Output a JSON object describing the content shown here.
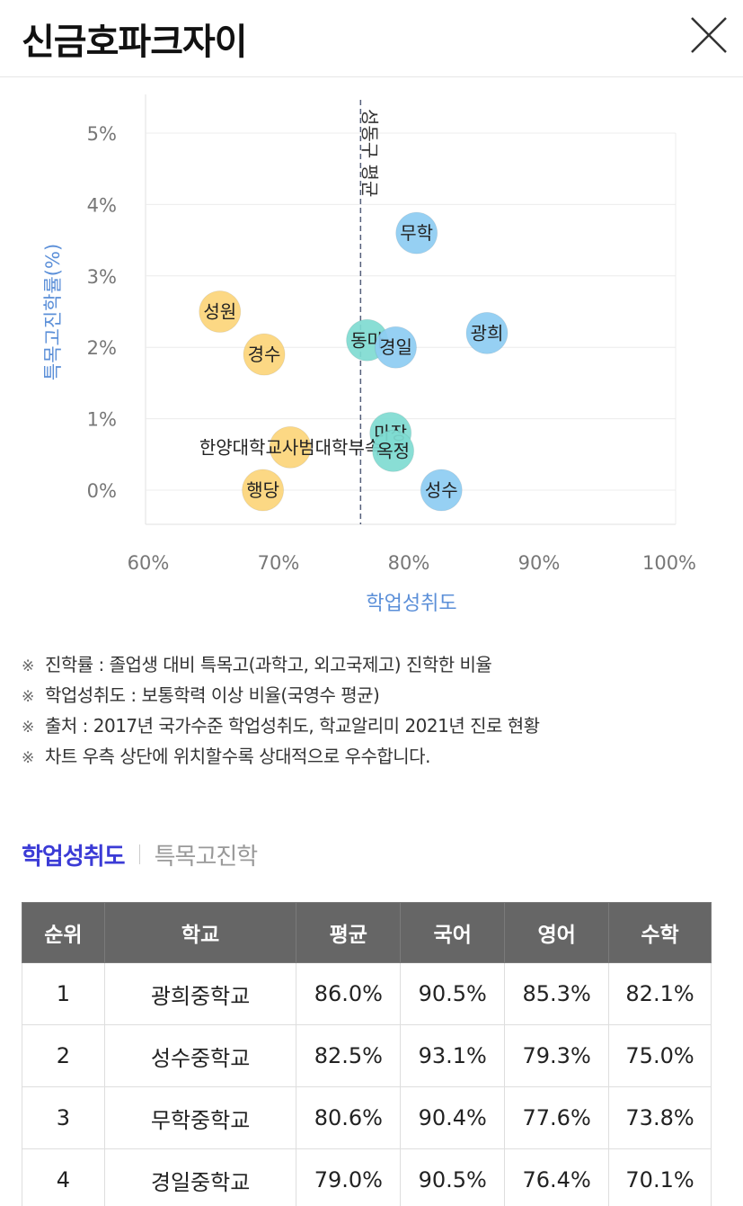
{
  "header": {
    "title": "신금호파크자이"
  },
  "chart_data": {
    "type": "scatter",
    "xlabel": "학업성취도",
    "ylabel": "특목고진학률(%)",
    "xlim": [
      60,
      100
    ],
    "ylim": [
      0,
      5
    ],
    "x_ticks": [
      "60%",
      "70%",
      "80%",
      "90%",
      "100%"
    ],
    "y_ticks": [
      "0%",
      "1%",
      "2%",
      "3%",
      "4%",
      "5%"
    ],
    "average_line": {
      "x": 76.3,
      "label": "성동구 평균"
    },
    "points": [
      {
        "name": "무학",
        "x": 80.6,
        "y": 3.6,
        "group": "blue"
      },
      {
        "name": "성원",
        "x": 65.5,
        "y": 2.5,
        "group": "yellow"
      },
      {
        "name": "광희",
        "x": 86.0,
        "y": 2.2,
        "group": "blue"
      },
      {
        "name": "동마",
        "x": 76.8,
        "y": 2.1,
        "group": "teal"
      },
      {
        "name": "경일",
        "x": 79.0,
        "y": 2.0,
        "group": "blue"
      },
      {
        "name": "경수",
        "x": 68.9,
        "y": 1.9,
        "group": "yellow"
      },
      {
        "name": "마장",
        "x": 78.6,
        "y": 0.8,
        "group": "teal"
      },
      {
        "name": "한양대학교사범대학부속",
        "x": 70.9,
        "y": 0.6,
        "group": "yellow"
      },
      {
        "name": "옥정",
        "x": 78.8,
        "y": 0.55,
        "group": "teal"
      },
      {
        "name": "행당",
        "x": 68.8,
        "y": 0.0,
        "group": "yellow"
      },
      {
        "name": "성수",
        "x": 82.5,
        "y": 0.0,
        "group": "blue"
      }
    ],
    "colors": {
      "blue": "#8ecdf3",
      "yellow": "#fcd57a",
      "teal": "#7fdcd2",
      "avg_line": "#555f7a",
      "axis_label": "#5b8fd8"
    }
  },
  "notes": [
    "진학률 : 졸업생 대비 특목고(과학고, 외고국제고) 진학한 비율",
    "학업성취도 : 보통학력 이상 비율(국영수 평균)",
    "출처 : 2017년 국가수준 학업성취도, 학교알리미 2021년 진로 현황",
    "차트 우측 상단에 위치할수록 상대적으로 우수합니다."
  ],
  "note_mark": "※",
  "tabs": [
    {
      "label": "학업성취도",
      "active": true
    },
    {
      "label": "특목고진학",
      "active": false
    }
  ],
  "table": {
    "headers": [
      "순위",
      "학교",
      "평균",
      "국어",
      "영어",
      "수학"
    ],
    "rows": [
      [
        "1",
        "광희중학교",
        "86.0%",
        "90.5%",
        "85.3%",
        "82.1%"
      ],
      [
        "2",
        "성수중학교",
        "82.5%",
        "93.1%",
        "79.3%",
        "75.0%"
      ],
      [
        "3",
        "무학중학교",
        "80.6%",
        "90.4%",
        "77.6%",
        "73.8%"
      ],
      [
        "4",
        "경일중학교",
        "79.0%",
        "90.5%",
        "76.4%",
        "70.1%"
      ]
    ]
  }
}
